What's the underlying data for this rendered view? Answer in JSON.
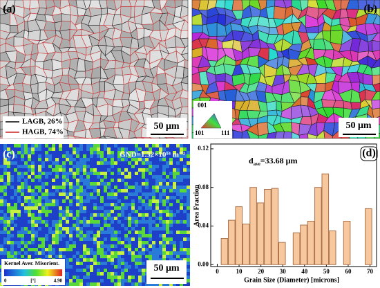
{
  "panels": {
    "a": {
      "label": "(a)",
      "legend": [
        "LAGB, 26%",
        "HAGB, 74%"
      ],
      "scale": "50 μm"
    },
    "b": {
      "label": "(b)",
      "ipf": [
        "001",
        "101",
        "111"
      ],
      "scale": "50 μm"
    },
    "c": {
      "label": "(c)",
      "gnd": "GND=1.32×10¹⁴ m⁻²",
      "colorbar_title": "Kernel Aver. Misorient.",
      "colorbar_ticks": [
        "0",
        "[°]",
        "4.90"
      ],
      "scale": "50 μm"
    }
  },
  "chart_data": {
    "type": "bar",
    "label": "(d)",
    "annotation": {
      "main": "d",
      "sub": "ave",
      "rest": "=33.68 μm"
    },
    "xlabel": "Grain Size (Diameter) [microns]",
    "ylabel": "Area Fraction",
    "x": [
      3.3,
      6.6,
      9.9,
      13.2,
      16.5,
      19.8,
      23.1,
      26.4,
      29.7,
      36.3,
      39.6,
      42.9,
      46.2,
      49.5,
      52.8,
      59.4,
      69.3
    ],
    "values": [
      0.027,
      0.046,
      0.06,
      0.042,
      0.08,
      0.064,
      0.078,
      0.079,
      0.023,
      0.033,
      0.041,
      0.045,
      0.08,
      0.094,
      0.035,
      0.045,
      0.058
    ],
    "color": "#f7c79e",
    "xlim": [
      -3,
      73
    ],
    "xticks": [
      0,
      10,
      20,
      30,
      40,
      50,
      60,
      70
    ],
    "ylim": [
      -0.002,
      0.125
    ],
    "yticks": [
      {
        "value": 0,
        "label": "0.00"
      },
      0.04,
      0.08,
      0.12
    ]
  }
}
